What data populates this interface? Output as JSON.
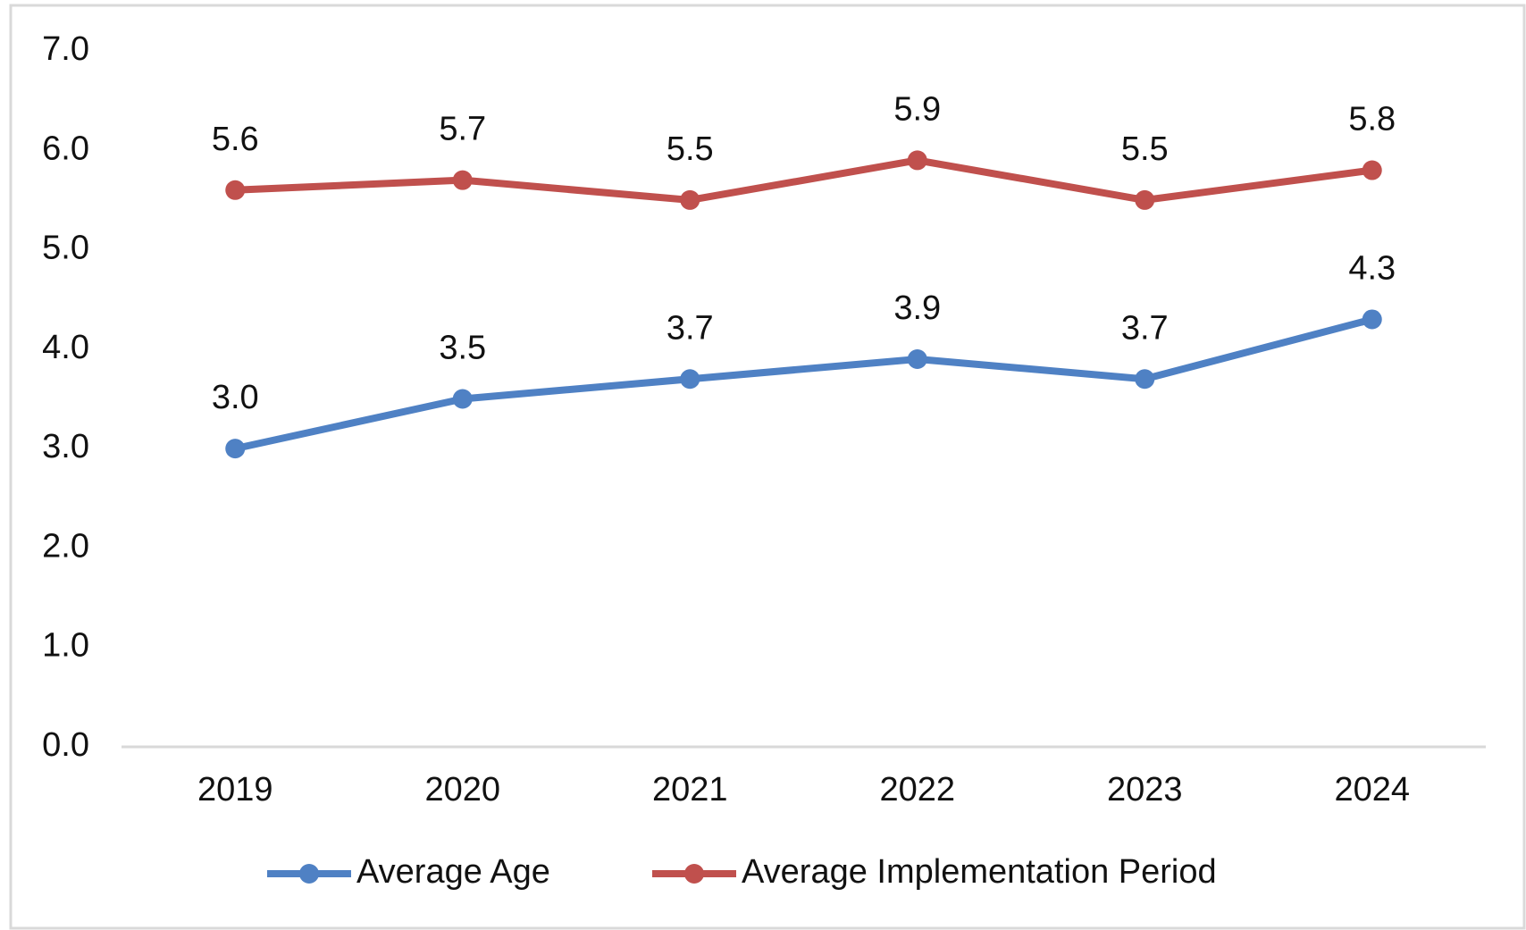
{
  "chart_data": {
    "type": "line",
    "categories": [
      "2019",
      "2020",
      "2021",
      "2022",
      "2023",
      "2024"
    ],
    "series": [
      {
        "name": "Average Age",
        "color": "#4f81c4",
        "values": [
          3.0,
          3.5,
          3.7,
          3.9,
          3.7,
          4.3
        ],
        "value_labels": [
          "3.0",
          "3.5",
          "3.7",
          "3.9",
          "3.7",
          "4.3"
        ]
      },
      {
        "name": "Average Implementation Period",
        "color": "#c0504d",
        "values": [
          5.6,
          5.7,
          5.5,
          5.9,
          5.5,
          5.8
        ],
        "value_labels": [
          "5.6",
          "5.7",
          "5.5",
          "5.9",
          "5.5",
          "5.8"
        ]
      }
    ],
    "ylim": [
      0,
      7
    ],
    "yticks": [
      {
        "value": 0,
        "label": "0.0"
      },
      {
        "value": 1,
        "label": "1.0"
      },
      {
        "value": 2,
        "label": "2.0"
      },
      {
        "value": 3,
        "label": "3.0"
      },
      {
        "value": 4,
        "label": "4.0"
      },
      {
        "value": 5,
        "label": "5.0"
      },
      {
        "value": 6,
        "label": "6.0"
      },
      {
        "value": 7,
        "label": "7.0"
      }
    ],
    "grid": false,
    "legend": "bottom"
  }
}
